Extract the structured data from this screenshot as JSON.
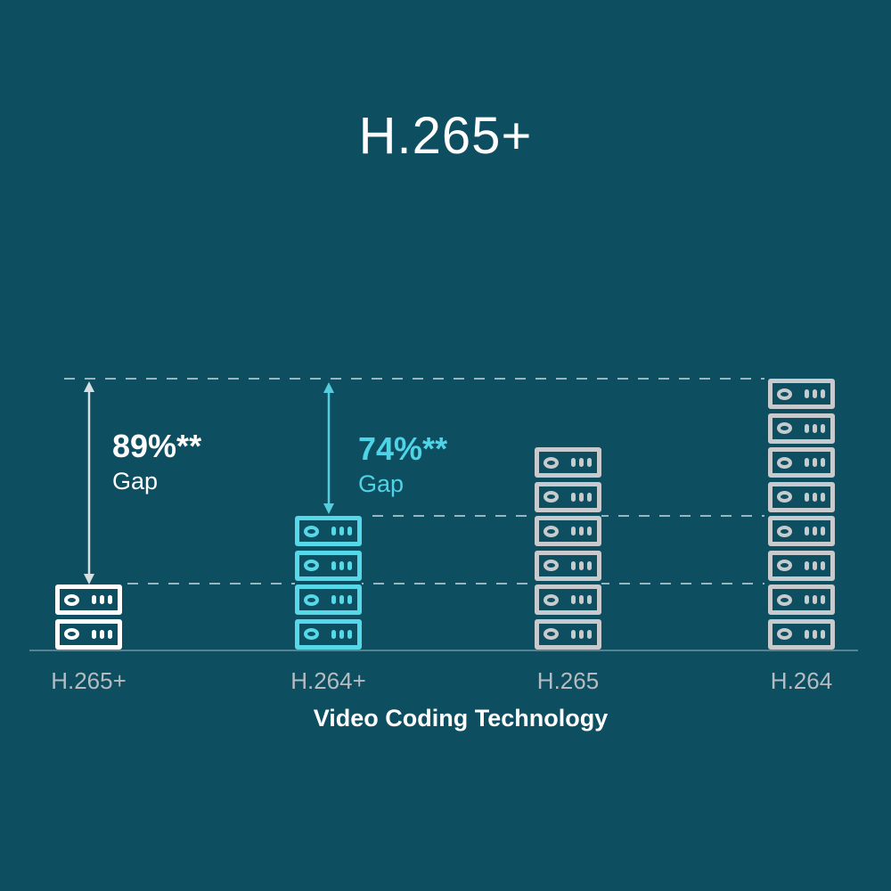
{
  "canvas": {
    "background": "#0e4e61"
  },
  "title": "H.265+",
  "x_axis_title": "Video Coding Technology",
  "columns": [
    {
      "label": "H.265+",
      "units": 2,
      "color": "#ffffff"
    },
    {
      "label": "H.264+",
      "units": 4,
      "color": "#57d8e8"
    },
    {
      "label": "H.265",
      "units": 6,
      "color": "#c7cbce"
    },
    {
      "label": "H.264",
      "units": 8,
      "color": "#c7cbce"
    }
  ],
  "annotations": [
    {
      "percent": "89%**",
      "label": "Gap",
      "text_color": "#ffffff",
      "arrow_color": "#d6dfe2",
      "target": "H.265+"
    },
    {
      "percent": "74%**",
      "label": "Gap",
      "text_color": "#4fd3e6",
      "arrow_color": "#55cddd",
      "target": "H.264+"
    }
  ],
  "icon": {
    "name": "server-unit-icon",
    "parts": [
      "oval-led-ring",
      "three-vent-bars"
    ]
  },
  "chart_data": {
    "type": "bar",
    "categories": [
      "H.265+",
      "H.264+",
      "H.265",
      "H.264"
    ],
    "values": [
      2,
      4,
      6,
      8
    ],
    "value_unit": "stacked storage server icons",
    "title": "H.265+",
    "xlabel": "Video Coding Technology",
    "ylabel": "",
    "ylim": [
      0,
      8
    ],
    "gridlines": {
      "style": "dashed",
      "levels": [
        2,
        4,
        8
      ]
    },
    "legend": "none",
    "annotations": [
      {
        "category": "H.265+",
        "text": "89%** Gap",
        "meaning": "gap vs H.264 top level"
      },
      {
        "category": "H.264+",
        "text": "74%** Gap",
        "meaning": "gap vs H.264 top level"
      }
    ]
  }
}
